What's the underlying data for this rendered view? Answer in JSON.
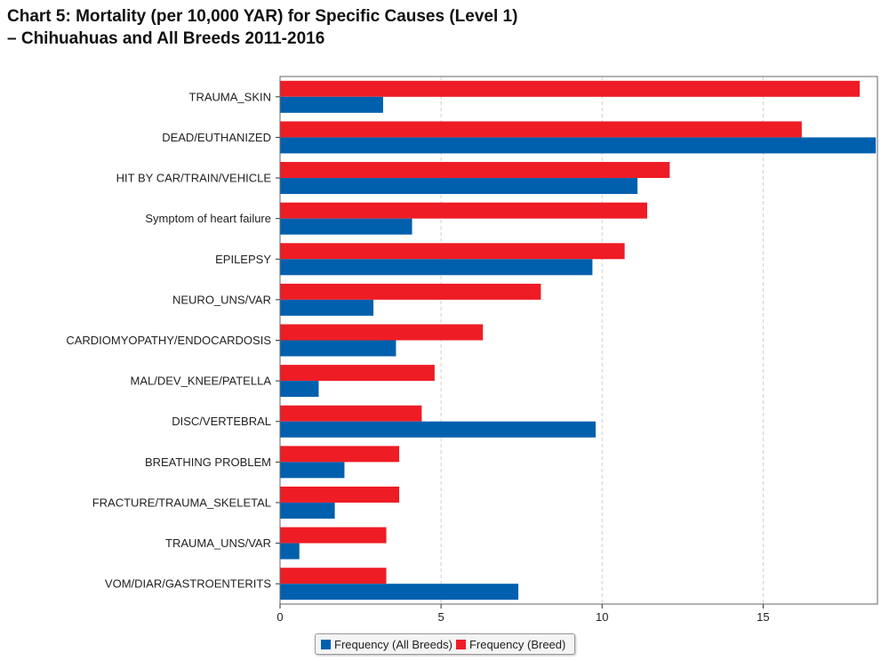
{
  "title_line1": "Chart 5: Mortality (per 10,000 YAR) for Specific Causes (Level 1)",
  "title_line2": "– Chihuahuas and All Breeds 2011-2016",
  "chart_data": {
    "type": "bar",
    "orientation": "horizontal",
    "categories": [
      "TRAUMA_SKIN",
      "DEAD/EUTHANIZED",
      "HIT BY CAR/TRAIN/VEHICLE",
      "Symptom of heart failure",
      "EPILEPSY",
      "NEURO_UNS/VAR",
      "CARDIOMYOPATHY/ENDOCARDOSIS",
      "MAL/DEV_KNEE/PATELLA",
      "DISC/VERTEBRAL",
      "BREATHING PROBLEM",
      "FRACTURE/TRAUMA_SKELETAL",
      "TRAUMA_UNS/VAR",
      "VOM/DIAR/GASTROENTERITS"
    ],
    "series": [
      {
        "name": "Frequency (Breed)",
        "color": "#ee1c25",
        "values": [
          18.0,
          16.2,
          12.1,
          11.4,
          10.7,
          8.1,
          6.3,
          4.8,
          4.4,
          3.7,
          3.7,
          3.3,
          3.3
        ]
      },
      {
        "name": "Frequency (All Breeds)",
        "color": "#0060ad",
        "values": [
          3.2,
          18.5,
          11.1,
          4.1,
          9.7,
          2.9,
          3.6,
          1.2,
          9.8,
          2.0,
          1.7,
          0.6,
          7.4
        ]
      }
    ],
    "xticks": [
      "0",
      "5",
      "10",
      "15"
    ],
    "xtick_values": [
      0,
      5,
      10,
      15
    ],
    "xlim": [
      0,
      18.55
    ],
    "xlabel": "",
    "ylabel": "",
    "grid": "vertical dashed",
    "legend_position": "bottom-center"
  },
  "legend": {
    "all_breeds_label": "Frequency (All Breeds)",
    "breed_label": "Frequency (Breed)",
    "all_breeds_color": "#0060ad",
    "breed_color": "#ee1c25"
  }
}
